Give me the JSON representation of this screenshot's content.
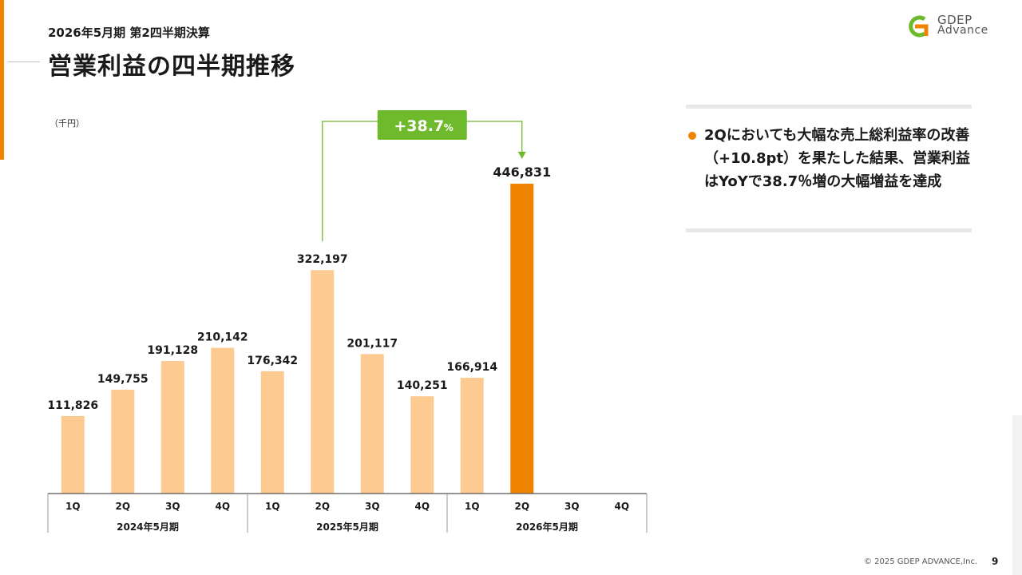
{
  "header": {
    "subtitle": "2026年5月期 第2四半期決算",
    "title": "営業利益の四半期推移"
  },
  "logo": {
    "line1": "GDEP",
    "line2": "Advance",
    "colors": [
      "#f08300",
      "#6fb92c"
    ]
  },
  "chart_data": {
    "type": "bar",
    "unit_label": "（千円）",
    "quarters": [
      "1Q",
      "2Q",
      "3Q",
      "4Q",
      "1Q",
      "2Q",
      "3Q",
      "4Q",
      "1Q",
      "2Q",
      "3Q",
      "4Q"
    ],
    "fiscal_years": [
      "2024年5月期",
      "2025年5月期",
      "2026年5月期"
    ],
    "values": [
      111826,
      149755,
      191128,
      210142,
      176342,
      322197,
      201117,
      140251,
      166914,
      446831,
      null,
      null
    ],
    "value_labels": [
      "111,826",
      "149,755",
      "191,128",
      "210,142",
      "176,342",
      "322,197",
      "201,117",
      "140,251",
      "166,914",
      "446,831",
      "",
      ""
    ],
    "highlight_index": 9,
    "colors": {
      "normal": "#fdca92",
      "highlight": "#f08300",
      "callout": "#6fb92c"
    },
    "ylim": [
      0,
      500000
    ],
    "grid": false,
    "callout": {
      "label": "+38.7",
      "suffix": "%",
      "from_index": 5,
      "to_index": 9
    }
  },
  "panel": {
    "bullet": "2Qにおいても大幅な売上総利益率の改善（+10.8pt）を果たした結果、営業利益はYoYで38.7％増の大幅増益を達成"
  },
  "footer": {
    "copyright": "© 2025 GDEP ADVANCE,Inc.",
    "page": "9"
  }
}
